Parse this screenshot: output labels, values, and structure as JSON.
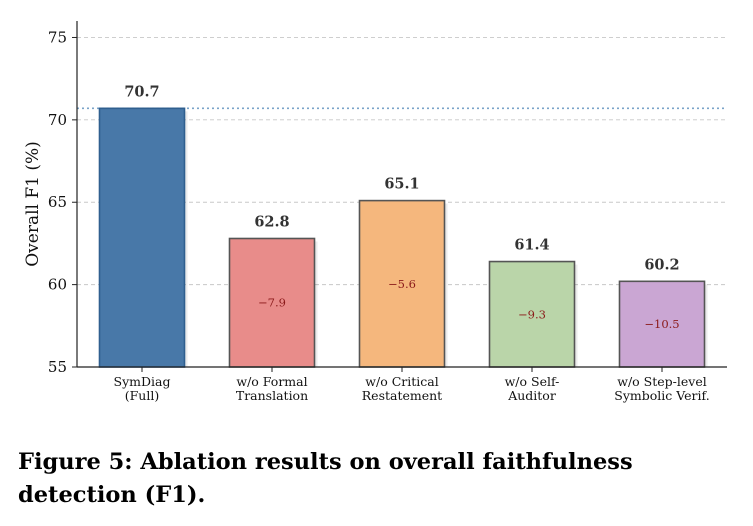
{
  "caption": "Figure 5: Ablation results on overall faithfulness detection (F1).",
  "chart_data": {
    "type": "bar",
    "title": "",
    "xlabel": "",
    "ylabel": "Overall F1 (%)",
    "ylim": [
      55,
      76
    ],
    "yticks": [
      55,
      60,
      65,
      70,
      75
    ],
    "grid": "horizontal dashed",
    "reference_line": 70.7,
    "categories": [
      [
        "SymDiag",
        "(Full)"
      ],
      [
        "w/o Formal",
        "Translation"
      ],
      [
        "w/o Critical",
        "Restatement"
      ],
      [
        "w/o Self-",
        "Auditor"
      ],
      [
        "w/o Step-level",
        "Symbolic Verif."
      ]
    ],
    "values": [
      70.7,
      62.8,
      65.1,
      61.4,
      60.2
    ],
    "value_labels": [
      "70.7",
      "62.8",
      "65.1",
      "61.4",
      "60.2"
    ],
    "deltas": [
      "",
      "−7.9",
      "−5.6",
      "−9.3",
      "−10.5"
    ],
    "colors": [
      "#4878a8",
      "#e88c8a",
      "#f5b77d",
      "#bad5a9",
      "#caa6d3"
    ]
  }
}
